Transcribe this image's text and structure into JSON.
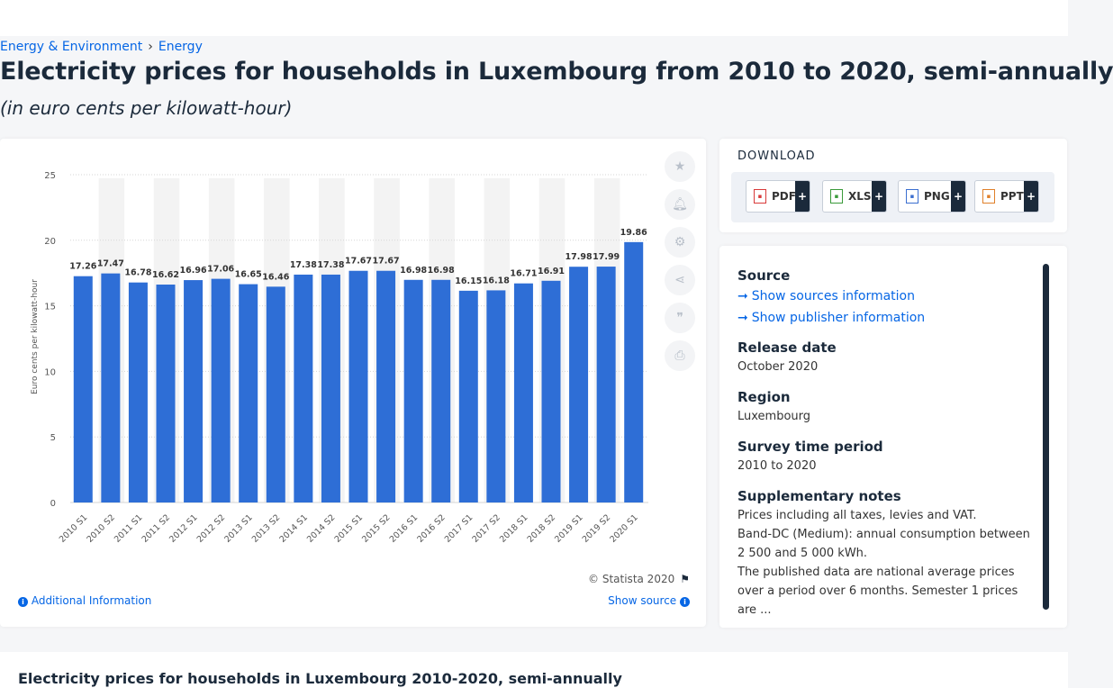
{
  "breadcrumb": [
    "Energy & Environment",
    "Energy"
  ],
  "page_title": "Electricity prices for households in Luxembourg from 2010 to 2020, semi-annually",
  "subtitle": "(in euro cents per kilowatt-hour)",
  "chart_data": {
    "type": "bar",
    "categories": [
      "2010 S1",
      "2010 S2",
      "2011 S1",
      "2011 S2",
      "2012 S1",
      "2012 S2",
      "2013 S1",
      "2013 S2",
      "2014 S1",
      "2014 S2",
      "2015 S1",
      "2015 S2",
      "2016 S1",
      "2016 S2",
      "2017 S1",
      "2017 S2",
      "2018 S1",
      "2018 S2",
      "2019 S1",
      "2019 S2",
      "2020 S1"
    ],
    "values": [
      17.26,
      17.47,
      16.78,
      16.62,
      16.96,
      17.06,
      16.65,
      16.46,
      17.38,
      17.38,
      17.67,
      17.67,
      16.98,
      16.98,
      16.15,
      16.18,
      16.71,
      16.91,
      17.98,
      17.99,
      19.86
    ],
    "value_labels": [
      "17.26",
      "17.47",
      "16.78",
      "16.62",
      "16.96",
      "17.06",
      "16.65",
      "16.46",
      "17.38",
      "17.38",
      "17.67",
      "17.67",
      "16.98",
      "16.98",
      "16.15",
      "16.18",
      "16.71",
      "16.91",
      "17.98",
      "17.99",
      "19.86"
    ],
    "ylabel": "Euro cents per kilowatt-hour",
    "xlabel": "",
    "ylim": [
      0,
      25
    ],
    "yticks": [
      "0",
      "5",
      "10",
      "15",
      "20",
      "25"
    ],
    "grid": true,
    "bar_color": "#2e6ed6",
    "bg_column_color": "#f3f3f3"
  },
  "chart_footer": {
    "copyright": "© Statista 2020",
    "additional_info": "Additional Information",
    "show_source": "Show source"
  },
  "side_icons": [
    "star-icon",
    "bell-icon",
    "gear-icon",
    "share-icon",
    "quote-icon",
    "print-icon"
  ],
  "download": {
    "title": "DOWNLOAD",
    "buttons": [
      {
        "label": "PDF",
        "color": "#d83a3a"
      },
      {
        "label": "XLS",
        "color": "#3a9a3a"
      },
      {
        "label": "PNG",
        "color": "#3b6fd0"
      },
      {
        "label": "PPT",
        "color": "#e0802a"
      }
    ],
    "plus": "+"
  },
  "meta": {
    "source_heading": "Source",
    "show_sources": "Show sources information",
    "show_publisher": "Show publisher information",
    "release_heading": "Release date",
    "release_value": "October 2020",
    "region_heading": "Region",
    "region_value": "Luxembourg",
    "survey_heading": "Survey time period",
    "survey_value": "2010 to 2020",
    "notes_heading": "Supplementary notes",
    "notes_1": "Prices including all taxes, levies and VAT.",
    "notes_2": "Band-DC (Medium): annual consumption between 2 500 and 5 000 kWh.",
    "notes_3": "The published data are national average prices over a period over 6 months. Semester 1 prices are ..."
  },
  "bottom_title": "Electricity prices for households in Luxembourg 2010-2020, semi-annually"
}
